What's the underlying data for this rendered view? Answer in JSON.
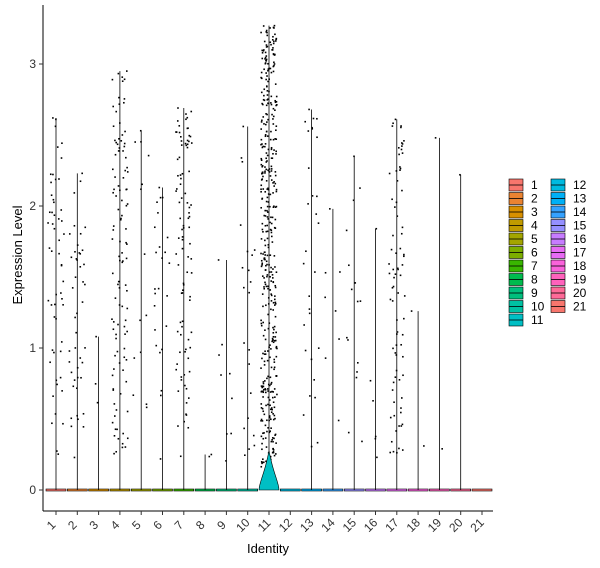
{
  "chart_data": {
    "type": "violin",
    "xlabel": "Identity",
    "ylabel": "Expression Level",
    "ylim": [
      -0.15,
      3.42
    ],
    "y_ticks": [
      0,
      1,
      2,
      3
    ],
    "grid": false,
    "legend_position": "right",
    "categories": [
      "1",
      "2",
      "3",
      "4",
      "5",
      "6",
      "7",
      "8",
      "9",
      "10",
      "11",
      "12",
      "13",
      "14",
      "15",
      "16",
      "17",
      "18",
      "19",
      "20",
      "21"
    ],
    "colors": [
      "#F8766D",
      "#EA8331",
      "#D89000",
      "#C09B00",
      "#A3A500",
      "#7CAE00",
      "#39B600",
      "#00BB4E",
      "#00BF7D",
      "#00C1A3",
      "#00BFC4",
      "#00BAE0",
      "#00B0F6",
      "#35A2FF",
      "#9590FF",
      "#C77CFF",
      "#E76BF3",
      "#FA62DB",
      "#FF62BC",
      "#FF6A98",
      "#F8766D"
    ],
    "max_values": [
      2.62,
      2.23,
      1.08,
      2.95,
      2.53,
      2.13,
      2.69,
      0.25,
      1.62,
      2.56,
      3.27,
      0,
      2.68,
      1.98,
      2.35,
      1.84,
      2.61,
      1.26,
      2.48,
      2.22,
      0
    ],
    "n_nonzero": [
      55,
      45,
      3,
      110,
      14,
      25,
      95,
      2,
      9,
      22,
      450,
      0,
      30,
      8,
      16,
      6,
      80,
      2,
      2,
      1,
      0
    ],
    "legend": {
      "col1": [
        "1",
        "2",
        "3",
        "4",
        "5",
        "6",
        "7",
        "8",
        "9",
        "10",
        "11"
      ],
      "col2": [
        "12",
        "13",
        "14",
        "15",
        "16",
        "17",
        "18",
        "19",
        "20",
        "21"
      ]
    }
  }
}
